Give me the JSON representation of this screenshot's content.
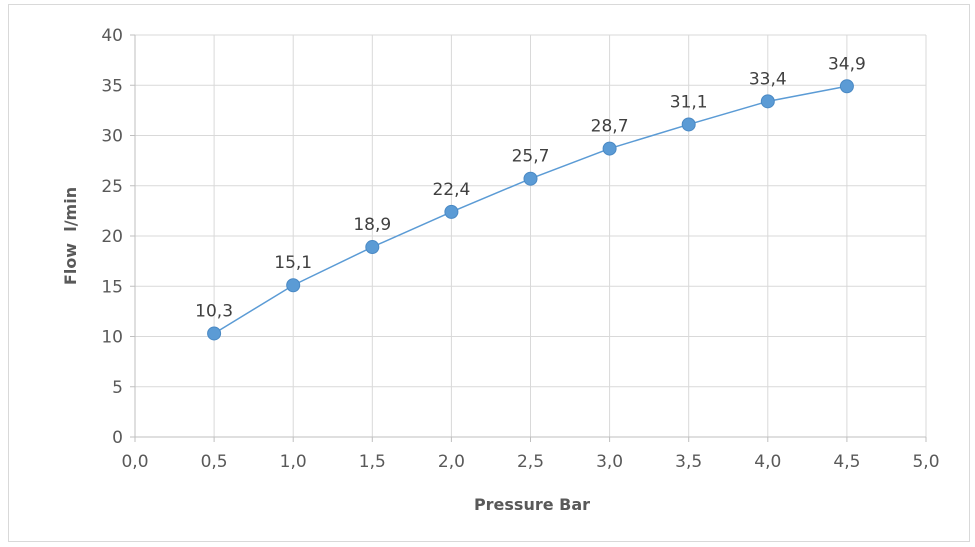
{
  "chart_data": {
    "type": "line",
    "markers": true,
    "x": [
      0.5,
      1.0,
      1.5,
      2.0,
      2.5,
      3.0,
      3.5,
      4.0,
      4.5
    ],
    "series": [
      {
        "values": [
          10.3,
          15.1,
          18.9,
          22.4,
          25.7,
          28.7,
          31.1,
          33.4,
          34.9
        ],
        "labels": [
          "10,3",
          "15,1",
          "18,9",
          "22,4",
          "25,7",
          "28,7",
          "31,1",
          "33,4",
          "34,9"
        ],
        "color": "#5b9bd5"
      }
    ],
    "xlabel": "Pressure Bar",
    "ylabel": "Flow  l/min",
    "xlim": [
      0,
      5
    ],
    "ylim": [
      0,
      40
    ],
    "x_ticks": [
      0,
      0.5,
      1.0,
      1.5,
      2.0,
      2.5,
      3.0,
      3.5,
      4.0,
      4.5,
      5.0
    ],
    "x_tick_labels": [
      "0,0",
      "0,5",
      "1,0",
      "1,5",
      "2,0",
      "2,5",
      "3,0",
      "3,5",
      "4,0",
      "4,5",
      "5,0"
    ],
    "y_ticks": [
      0,
      5,
      10,
      15,
      20,
      25,
      30,
      35,
      40
    ],
    "y_tick_labels": [
      "0",
      "5",
      "10",
      "15",
      "20",
      "25",
      "30",
      "35",
      "40"
    ],
    "grid": true,
    "legend": "none",
    "colors": {
      "grid": "#d9d9d9",
      "axis": "#bfbfbf",
      "text": "#595959"
    }
  }
}
